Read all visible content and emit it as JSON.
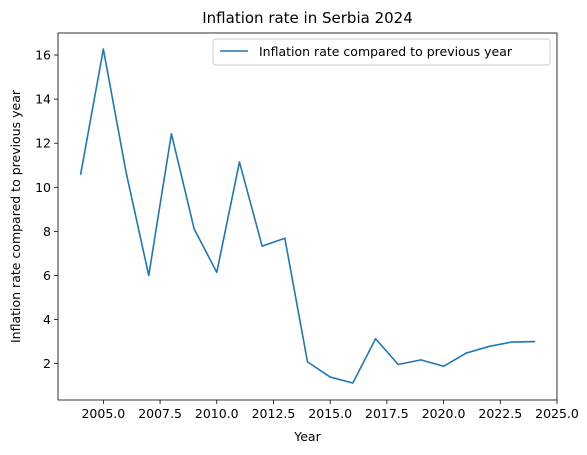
{
  "chart_data": {
    "type": "line",
    "title": "Inflation rate in Serbia 2024",
    "xlabel": "Year",
    "ylabel": "Inflation rate compared to previous year",
    "xlim": [
      2003.0,
      2025.0
    ],
    "ylim": [
      0.35,
      17.0
    ],
    "xticks": [
      2005.0,
      2007.5,
      2010.0,
      2012.5,
      2015.0,
      2017.5,
      2020.0,
      2022.5,
      2025.0
    ],
    "xtick_labels": [
      "2005.0",
      "2007.5",
      "2010.0",
      "2012.5",
      "2015.0",
      "2017.5",
      "2020.0",
      "2022.5",
      "2025.0"
    ],
    "yticks": [
      2,
      4,
      6,
      8,
      10,
      12,
      14,
      16
    ],
    "ytick_labels": [
      "2",
      "4",
      "6",
      "8",
      "10",
      "12",
      "14",
      "16"
    ],
    "grid": false,
    "legend_position": "top-right",
    "series": [
      {
        "name": "Inflation rate compared to previous year",
        "color": "#1f77b4",
        "x": [
          2004,
          2005,
          2006,
          2007,
          2008,
          2009,
          2010,
          2011,
          2012,
          2013,
          2014,
          2015,
          2016,
          2017,
          2018,
          2019,
          2020,
          2021,
          2022,
          2023,
          2024
        ],
        "y": [
          10.6,
          16.27,
          10.69,
          6.0,
          12.43,
          8.12,
          6.14,
          11.15,
          7.33,
          7.69,
          2.08,
          1.39,
          1.12,
          3.13,
          1.96,
          2.17,
          1.88,
          2.48,
          2.78,
          2.98,
          3.0
        ]
      }
    ]
  }
}
